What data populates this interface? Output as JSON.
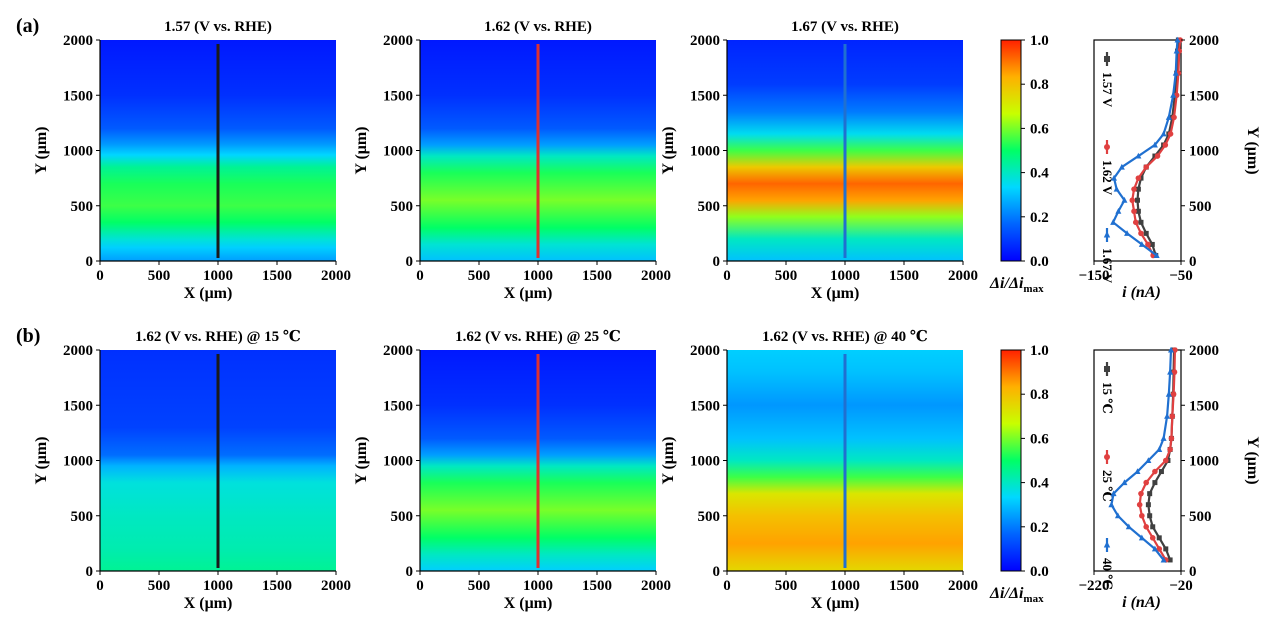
{
  "figure": {
    "panel_labels": [
      "(a)",
      "(b)"
    ],
    "colorbar": {
      "label_delta_i": "Δi",
      "label_slash": "/",
      "label_delta_imax": "Δi",
      "label_sub": "max",
      "ticks": [
        "1.0",
        "0.8",
        "0.6",
        "0.4",
        "0.2",
        "0.0"
      ],
      "colors": [
        "#0000ff",
        "#0064ff",
        "#00d8ff",
        "#00ff66",
        "#c8ff00",
        "#ffb000",
        "#ff2000"
      ]
    },
    "colors": {
      "line_a": "#1a1a1a",
      "line_b": "#e03030",
      "line_c": "#2070d0",
      "series_1": "#404040",
      "series_2": "#e04040",
      "series_3": "#2070d0"
    }
  },
  "chart_data": [
    {
      "type": "heatmap",
      "row": 0,
      "title": "1.57 (V vs. RHE)",
      "xlabel": "X (μm)",
      "ylabel": "Y (μm)",
      "xlim": [
        0,
        2000
      ],
      "ylim": [
        0,
        2000
      ],
      "xticks": [
        "0",
        "500",
        "1000",
        "1500",
        "2000"
      ],
      "yticks": [
        "0",
        "500",
        "1000",
        "1500",
        "2000"
      ],
      "scan_line_x": 1000,
      "line_color": "#1a1a1a",
      "bands": [
        [
          0,
          0.25
        ],
        [
          120,
          0.32
        ],
        [
          200,
          0.38
        ],
        [
          350,
          0.5
        ],
        [
          500,
          0.55
        ],
        [
          700,
          0.52
        ],
        [
          850,
          0.45
        ],
        [
          960,
          0.33
        ],
        [
          1060,
          0.24
        ],
        [
          1200,
          0.15
        ],
        [
          1500,
          0.08
        ],
        [
          2000,
          0.04
        ]
      ]
    },
    {
      "type": "heatmap",
      "row": 0,
      "title": "1.62 (V vs. RHE)",
      "xlabel": "X (μm)",
      "ylabel": "Y (μm)",
      "xlim": [
        0,
        2000
      ],
      "ylim": [
        0,
        2000
      ],
      "xticks": [
        "0",
        "500",
        "1000",
        "1500",
        "2000"
      ],
      "yticks": [
        "0",
        "500",
        "1000",
        "1500",
        "2000"
      ],
      "scan_line_x": 1000,
      "line_color": "#e03030",
      "bands": [
        [
          0,
          0.3
        ],
        [
          150,
          0.38
        ],
        [
          300,
          0.5
        ],
        [
          550,
          0.6
        ],
        [
          800,
          0.52
        ],
        [
          950,
          0.4
        ],
        [
          1050,
          0.25
        ],
        [
          1200,
          0.15
        ],
        [
          1500,
          0.08
        ],
        [
          2000,
          0.04
        ]
      ]
    },
    {
      "type": "heatmap",
      "row": 0,
      "title": "1.67 (V vs. RHE)",
      "xlabel": "X (μm)",
      "ylabel": "Y (μm)",
      "xlim": [
        0,
        2000
      ],
      "ylim": [
        0,
        2000
      ],
      "xticks": [
        "0",
        "500",
        "1000",
        "1500",
        "2000"
      ],
      "yticks": [
        "0",
        "500",
        "1000",
        "1500",
        "2000"
      ],
      "scan_line_x": 1000,
      "line_color": "#2070d0",
      "bands": [
        [
          0,
          0.3
        ],
        [
          200,
          0.4
        ],
        [
          400,
          0.62
        ],
        [
          550,
          0.85
        ],
        [
          700,
          0.92
        ],
        [
          850,
          0.78
        ],
        [
          1000,
          0.55
        ],
        [
          1150,
          0.35
        ],
        [
          1350,
          0.2
        ],
        [
          1600,
          0.1
        ],
        [
          2000,
          0.06
        ]
      ]
    },
    {
      "type": "line",
      "row": 0,
      "xlabel": "i (nA)",
      "ylabel": "Y (μm)",
      "xlim": [
        -150,
        -50
      ],
      "ylim": [
        0,
        2000
      ],
      "xticks": [
        "−150",
        "−50"
      ],
      "yticks": [
        "0",
        "500",
        "1000",
        "1500",
        "2000"
      ],
      "series": [
        {
          "name": "1.57 V",
          "color": "#404040",
          "y": [
            50,
            150,
            250,
            350,
            450,
            550,
            650,
            750,
            850,
            950,
            1050,
            1150,
            1300,
            1500,
            1700,
            1900,
            2000
          ],
          "x": [
            -79,
            -83,
            -90,
            -96,
            -99,
            -100,
            -99,
            -96,
            -90,
            -80,
            -70,
            -64,
            -60,
            -57,
            -55,
            -54,
            -53
          ]
        },
        {
          "name": "1.62 V",
          "color": "#e04040",
          "y": [
            50,
            150,
            250,
            350,
            450,
            550,
            650,
            750,
            850,
            950,
            1050,
            1150,
            1300,
            1500,
            1700,
            1900,
            2000
          ],
          "x": [
            -82,
            -88,
            -96,
            -102,
            -104,
            -106,
            -104,
            -99,
            -90,
            -77,
            -68,
            -62,
            -58,
            -55,
            -53,
            -52,
            -51
          ]
        },
        {
          "name": "1.67 V",
          "color": "#2070d0",
          "y": [
            50,
            150,
            250,
            350,
            450,
            550,
            650,
            750,
            850,
            950,
            1050,
            1150,
            1300,
            1500,
            1700,
            1900,
            2000
          ],
          "x": [
            -78,
            -95,
            -112,
            -128,
            -122,
            -115,
            -124,
            -127,
            -118,
            -99,
            -80,
            -70,
            -64,
            -59,
            -56,
            -55,
            -54
          ]
        }
      ]
    },
    {
      "type": "heatmap",
      "row": 1,
      "title": "1.62 (V vs. RHE) @ 15 ℃",
      "xlabel": "X (μm)",
      "ylabel": "Y (μm)",
      "xlim": [
        0,
        2000
      ],
      "ylim": [
        0,
        2000
      ],
      "xticks": [
        "0",
        "500",
        "1000",
        "1500",
        "2000"
      ],
      "yticks": [
        "0",
        "500",
        "1000",
        "1500",
        "2000"
      ],
      "scan_line_x": 1000,
      "line_color": "#1a1a1a",
      "bands": [
        [
          0,
          0.45
        ],
        [
          200,
          0.42
        ],
        [
          500,
          0.4
        ],
        [
          800,
          0.37
        ],
        [
          950,
          0.28
        ],
        [
          1050,
          0.18
        ],
        [
          1300,
          0.11
        ],
        [
          2000,
          0.08
        ]
      ]
    },
    {
      "type": "heatmap",
      "row": 1,
      "title": "1.62 (V vs. RHE) @ 25 ℃",
      "xlabel": "X (μm)",
      "ylabel": "Y (μm)",
      "xlim": [
        0,
        2000
      ],
      "ylim": [
        0,
        2000
      ],
      "xticks": [
        "0",
        "500",
        "1000",
        "1500",
        "2000"
      ],
      "yticks": [
        "0",
        "500",
        "1000",
        "1500",
        "2000"
      ],
      "scan_line_x": 1000,
      "line_color": "#e03030",
      "bands": [
        [
          0,
          0.32
        ],
        [
          150,
          0.4
        ],
        [
          300,
          0.5
        ],
        [
          550,
          0.6
        ],
        [
          800,
          0.52
        ],
        [
          950,
          0.4
        ],
        [
          1050,
          0.25
        ],
        [
          1200,
          0.15
        ],
        [
          1500,
          0.08
        ],
        [
          2000,
          0.04
        ]
      ]
    },
    {
      "type": "heatmap",
      "row": 1,
      "title": "1.62 (V vs. RHE) @ 40 ℃",
      "xlabel": "X (μm)",
      "ylabel": "Y (μm)",
      "xlim": [
        0,
        2000
      ],
      "ylim": [
        0,
        2000
      ],
      "xticks": [
        "0",
        "500",
        "1000",
        "1500",
        "2000"
      ],
      "yticks": [
        "0",
        "500",
        "1000",
        "1500",
        "2000"
      ],
      "scan_line_x": 1000,
      "line_color": "#2070d0",
      "bands": [
        [
          0,
          0.75
        ],
        [
          250,
          0.85
        ],
        [
          500,
          0.8
        ],
        [
          700,
          0.72
        ],
        [
          850,
          0.55
        ],
        [
          1000,
          0.4
        ],
        [
          1200,
          0.3
        ],
        [
          1500,
          0.24
        ],
        [
          1800,
          0.3
        ],
        [
          2000,
          0.32
        ]
      ]
    },
    {
      "type": "line",
      "row": 1,
      "xlabel": "i (nA)",
      "ylabel": "Y (μm)",
      "xlim": [
        -220,
        -20
      ],
      "ylim": [
        0,
        2000
      ],
      "xticks": [
        "−220",
        "−20"
      ],
      "yticks": [
        "0",
        "500",
        "1000",
        "1500",
        "2000"
      ],
      "series": [
        {
          "name": "15 ℃",
          "color": "#404040",
          "y": [
            100,
            200,
            300,
            400,
            500,
            600,
            700,
            800,
            900,
            1000,
            1100,
            1200,
            1400,
            1600,
            1800,
            2000
          ],
          "x": [
            -45,
            -55,
            -70,
            -85,
            -92,
            -95,
            -92,
            -80,
            -65,
            -50,
            -45,
            -42,
            -40,
            -38,
            -37,
            -36
          ]
        },
        {
          "name": "25 ℃",
          "color": "#e04040",
          "y": [
            100,
            200,
            300,
            400,
            500,
            600,
            700,
            800,
            900,
            1000,
            1100,
            1200,
            1400,
            1600,
            1800,
            2000
          ],
          "x": [
            -55,
            -70,
            -85,
            -100,
            -110,
            -115,
            -112,
            -100,
            -80,
            -55,
            -45,
            -42,
            -40,
            -37,
            -35,
            -34
          ]
        },
        {
          "name": "40 ℃",
          "color": "#2070d0",
          "y": [
            100,
            200,
            300,
            400,
            500,
            600,
            700,
            800,
            900,
            1000,
            1100,
            1200,
            1400,
            1600,
            1800,
            2000
          ],
          "x": [
            -60,
            -80,
            -110,
            -140,
            -165,
            -180,
            -175,
            -150,
            -120,
            -95,
            -70,
            -60,
            -52,
            -48,
            -45,
            -43
          ]
        }
      ]
    }
  ]
}
